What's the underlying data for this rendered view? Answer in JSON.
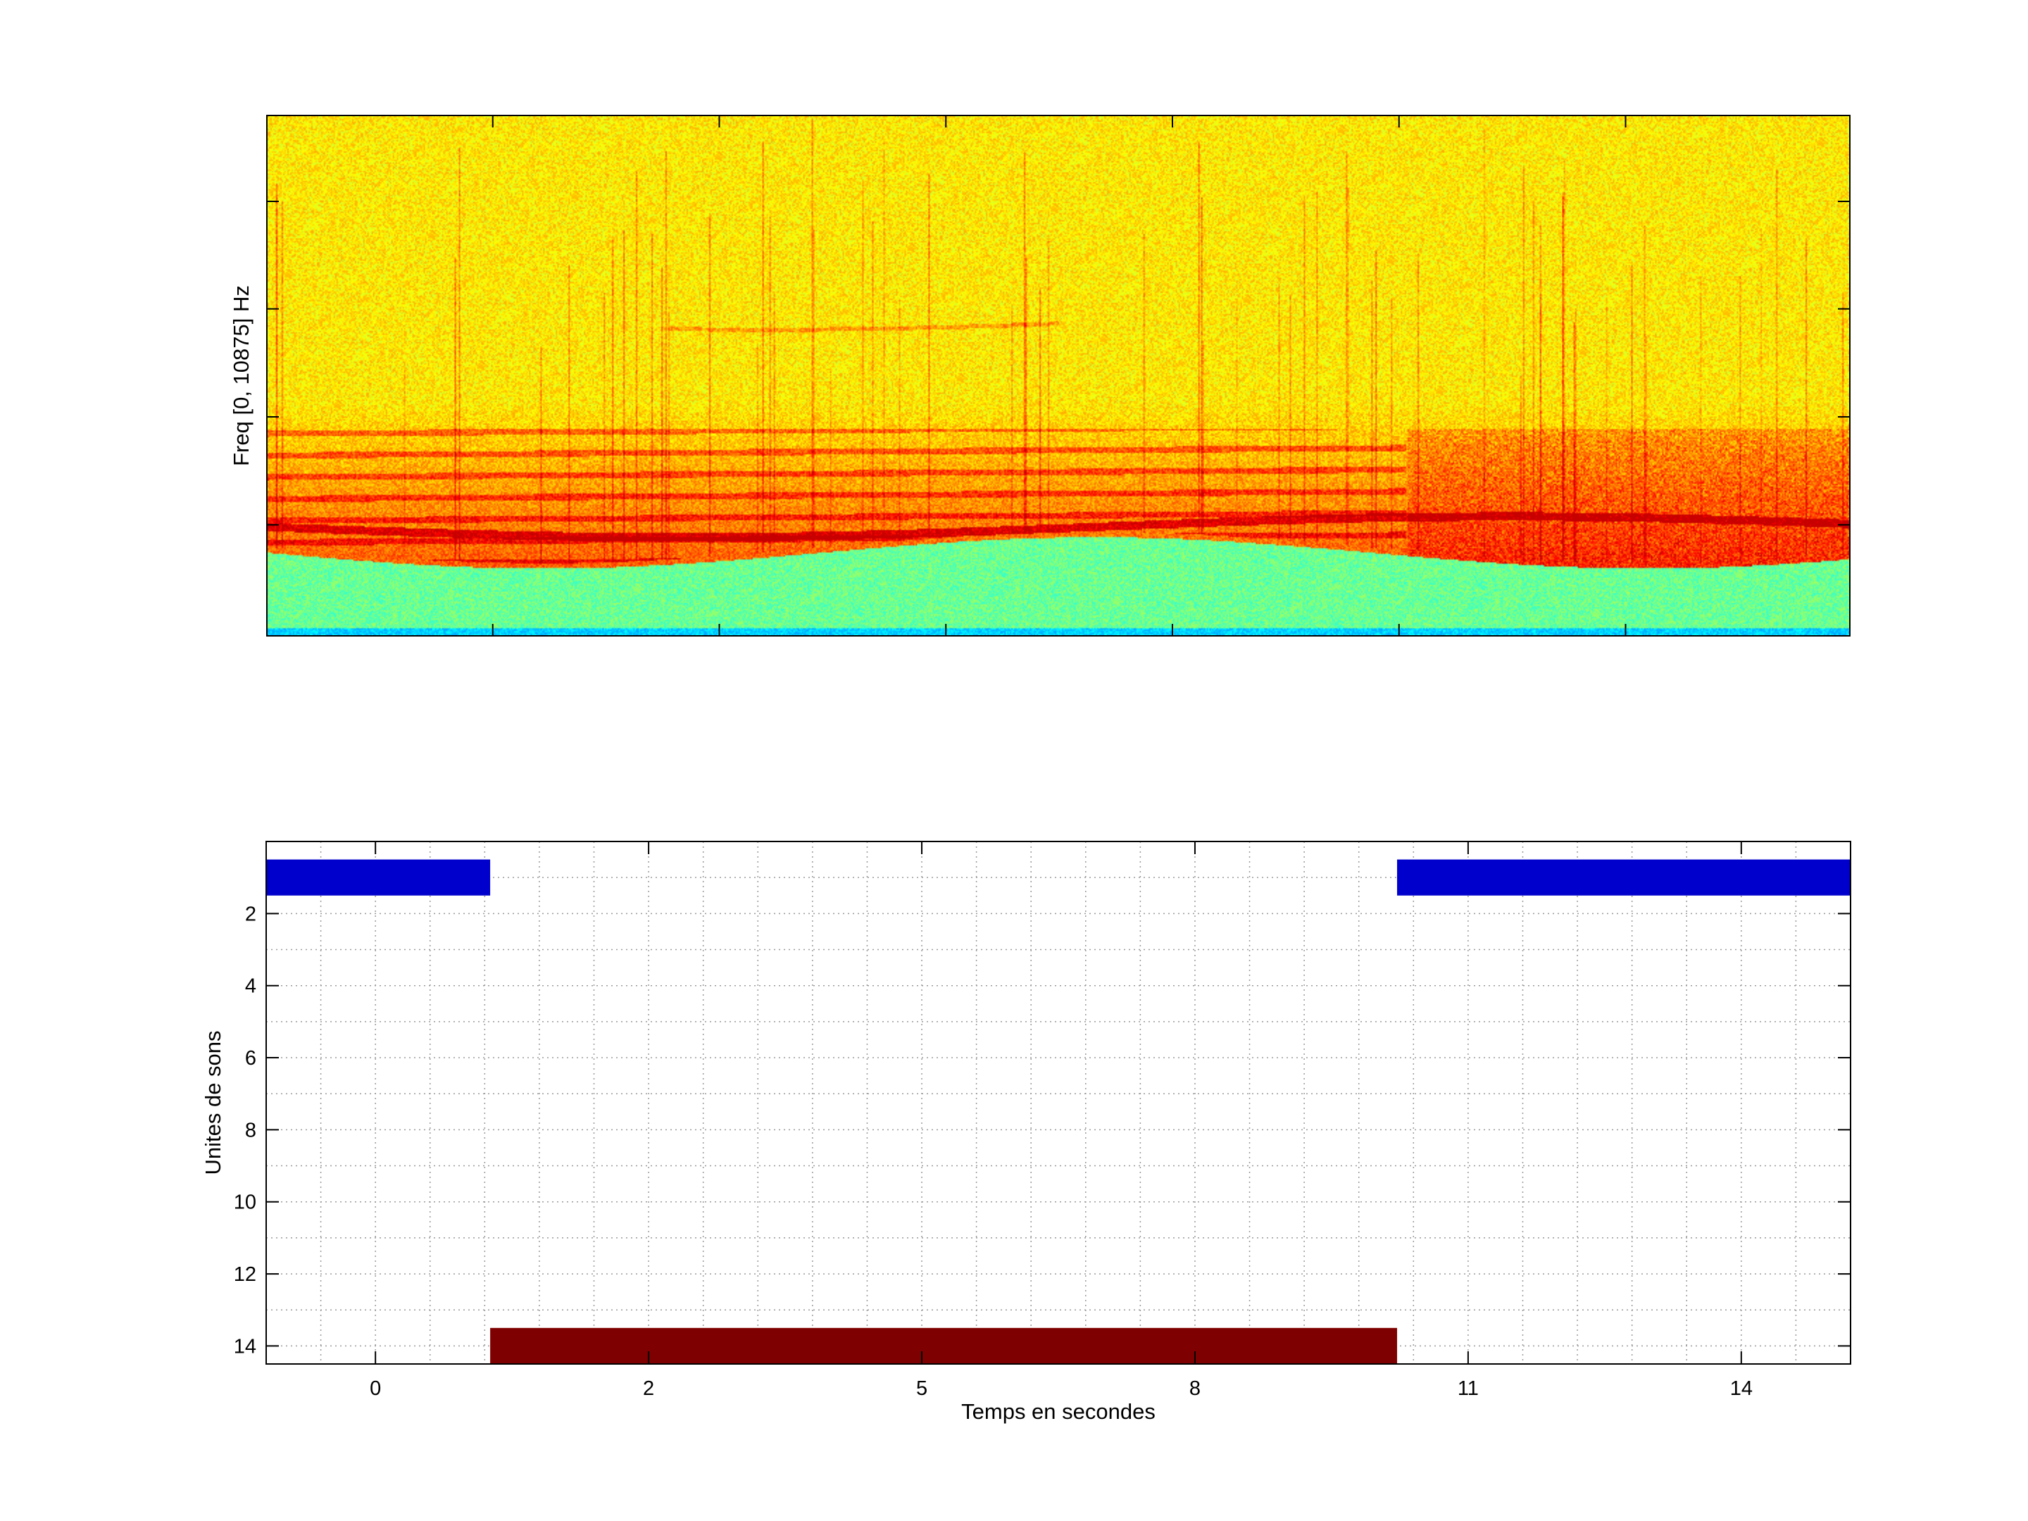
{
  "chart_data": [
    {
      "type": "heatmap",
      "ylabel": "Freq [0, 10875] Hz",
      "colormap": "jet",
      "colors": {
        "low": "#00bfff",
        "mid": "#7fff7f",
        "high": "#ffff00",
        "peak": "#cc0000"
      }
    },
    {
      "type": "bar",
      "orientation": "horizontal",
      "xlabel": "Temps en secondes",
      "ylabel": "Unites de sons",
      "xlim": [
        -2,
        27
      ],
      "ylim": [
        0,
        14.5
      ],
      "y_reversed": true,
      "grid": true,
      "xticks": [
        {
          "value": 0,
          "label": "0"
        },
        {
          "value": 5,
          "label": "2"
        },
        {
          "value": 10,
          "label": "5"
        },
        {
          "value": 15,
          "label": "8"
        },
        {
          "value": 20,
          "label": "11"
        },
        {
          "value": 25,
          "label": "14"
        }
      ],
      "yticks": [
        {
          "value": 2,
          "label": "2"
        },
        {
          "value": 4,
          "label": "4"
        },
        {
          "value": 6,
          "label": "6"
        },
        {
          "value": 8,
          "label": "8"
        },
        {
          "value": 10,
          "label": "10"
        },
        {
          "value": 12,
          "label": "12"
        },
        {
          "value": 14,
          "label": "14"
        }
      ],
      "segments": [
        {
          "unit": 1,
          "start": -2,
          "end": 2.1,
          "color": "#0000cc"
        },
        {
          "unit": 14,
          "start": 2.1,
          "end": 18.7,
          "color": "#7f0000"
        },
        {
          "unit": 1,
          "start": 18.7,
          "end": 27,
          "color": "#0000cc"
        }
      ]
    }
  ]
}
